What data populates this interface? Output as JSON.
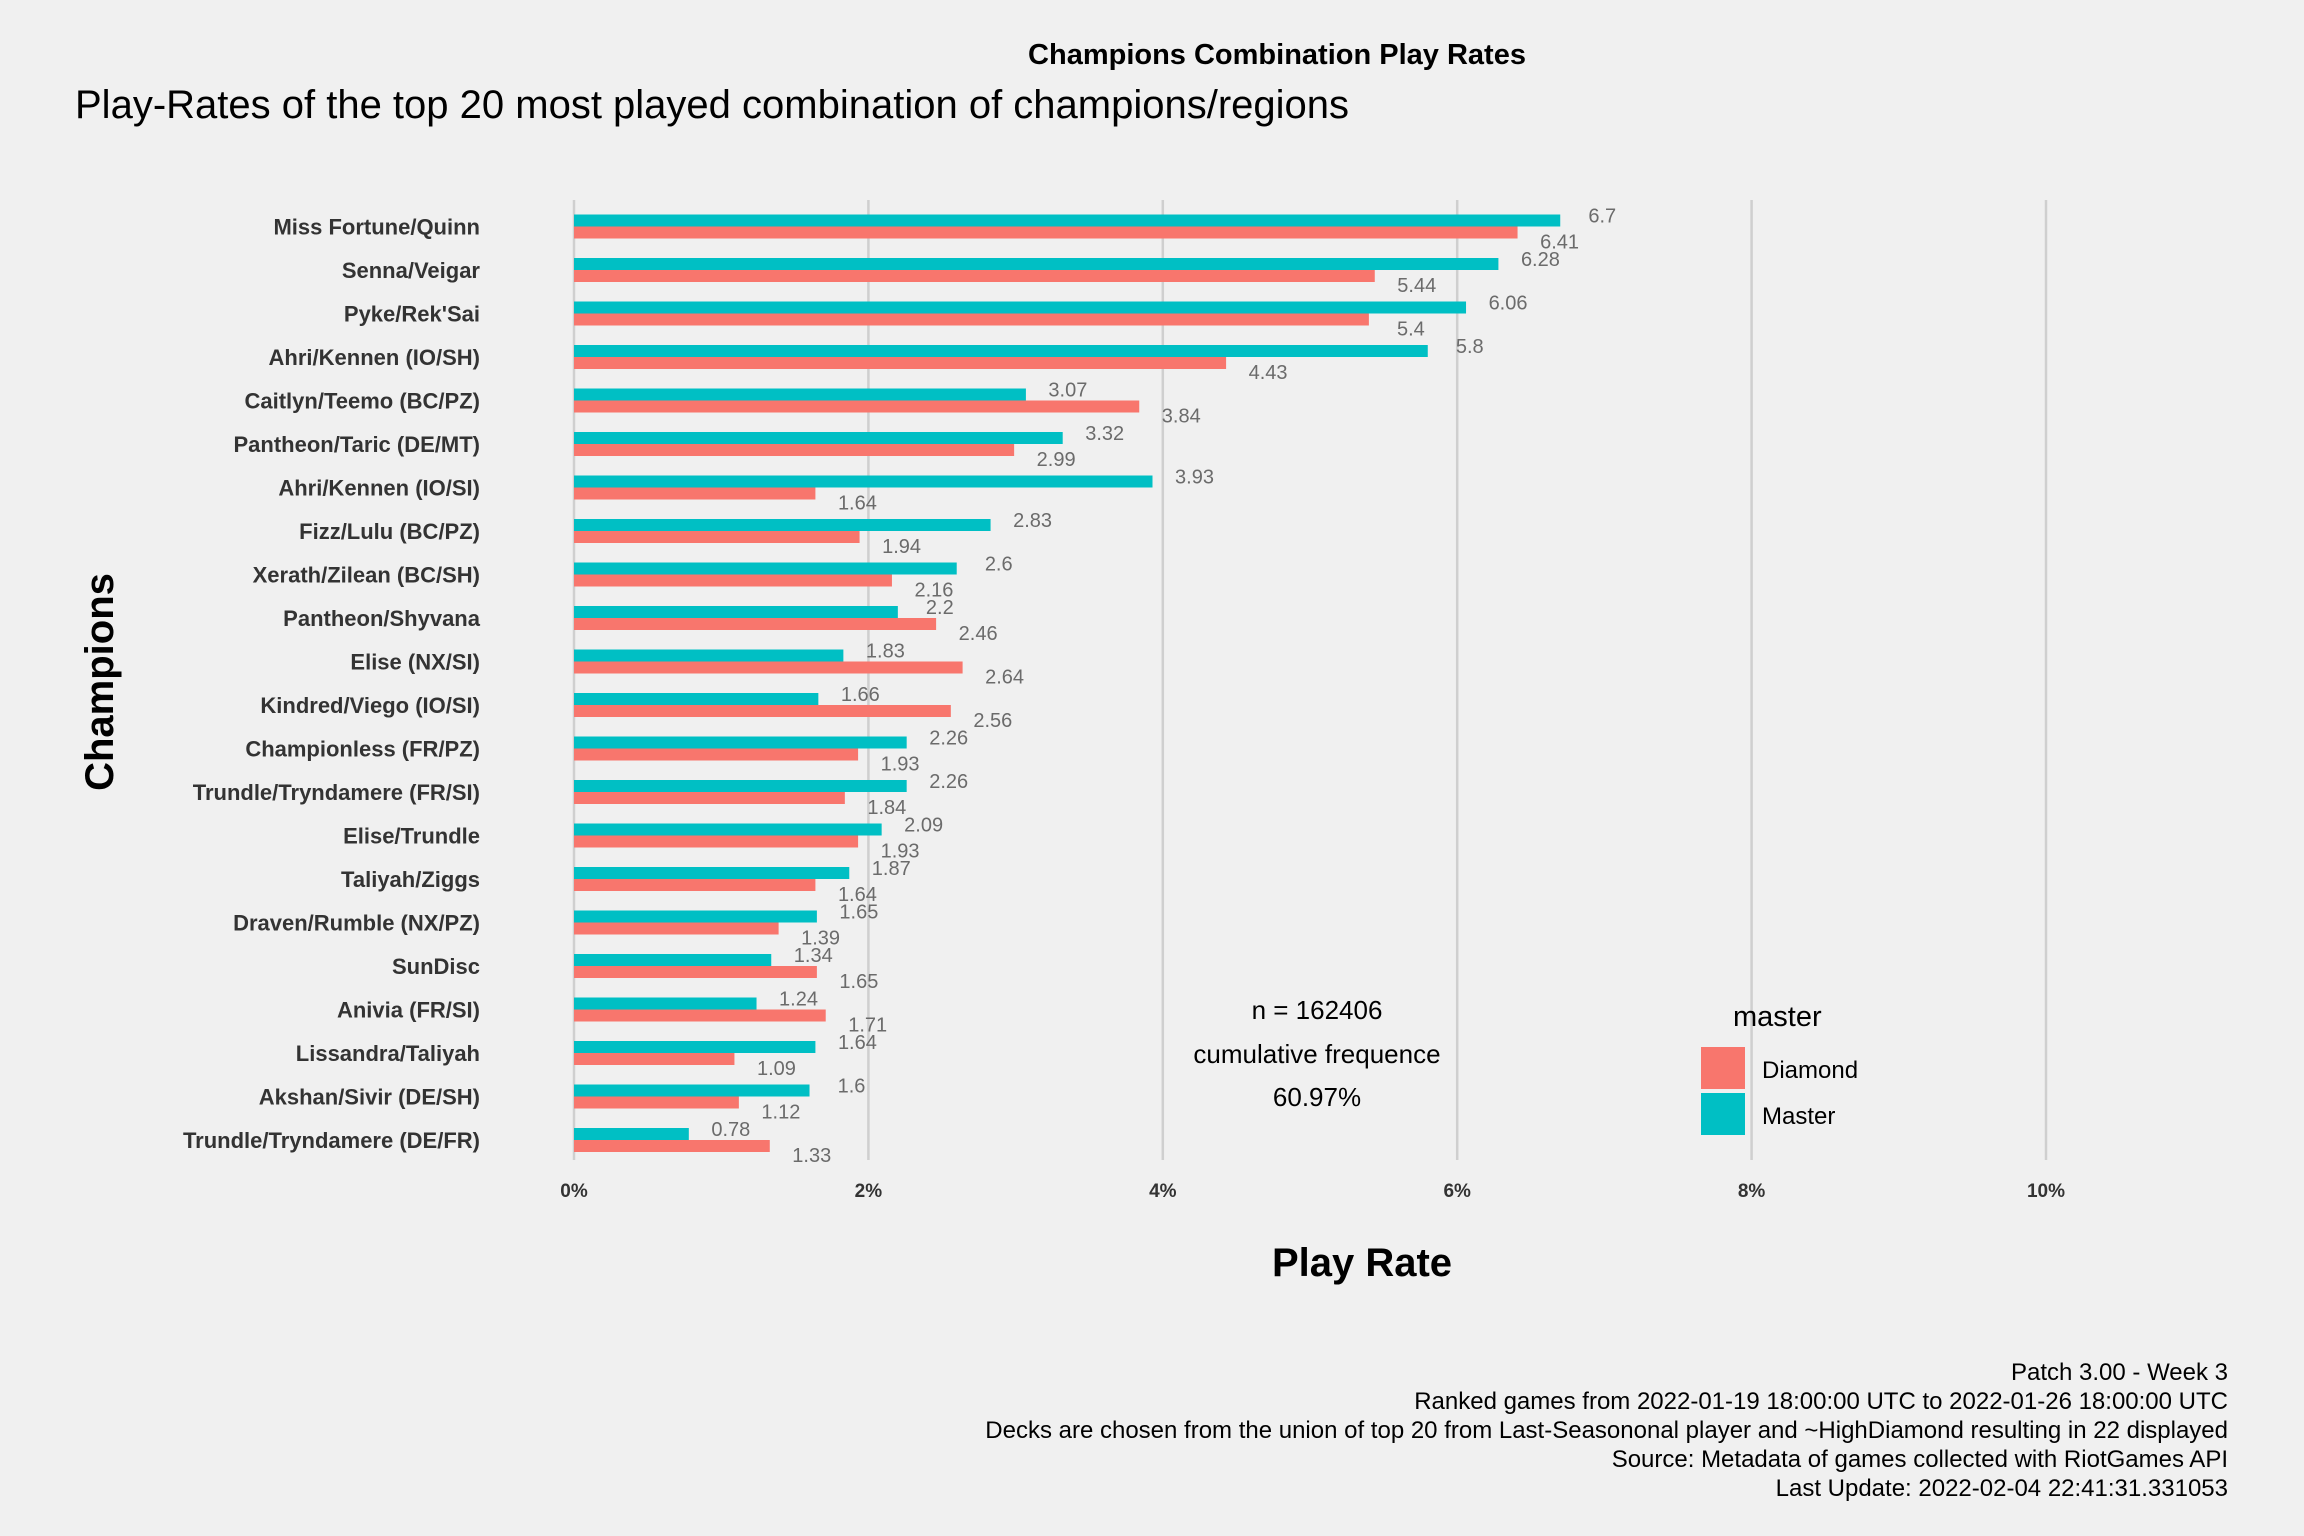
{
  "chart_data": {
    "type": "bar",
    "orientation": "horizontal",
    "suptitle": "Champions Combination Play Rates",
    "title": "Play-Rates of the top 20 most played combination of champions/regions",
    "xlabel": "Play Rate",
    "ylabel": "Champions",
    "xlim": [
      0,
      10
    ],
    "xticks": [
      "0%",
      "2%",
      "4%",
      "6%",
      "8%",
      "10%"
    ],
    "xtick_values": [
      0,
      2,
      4,
      6,
      8,
      10
    ],
    "grid": "vertical major",
    "categories": [
      "Miss Fortune/Quinn",
      "Senna/Veigar",
      "Pyke/Rek'Sai",
      "Ahri/Kennen (IO/SH)",
      "Caitlyn/Teemo (BC/PZ)",
      "Pantheon/Taric (DE/MT)",
      "Ahri/Kennen (IO/SI)",
      "Fizz/Lulu (BC/PZ)",
      "Xerath/Zilean (BC/SH)",
      "Pantheon/Shyvana",
      "Elise (NX/SI)",
      "Kindred/Viego (IO/SI)",
      "Championless (FR/PZ)",
      "Trundle/Tryndamere (FR/SI)",
      "Elise/Trundle",
      "Taliyah/Ziggs",
      "Draven/Rumble (NX/PZ)",
      "SunDisc",
      "Anivia (FR/SI)",
      "Lissandra/Taliyah",
      "Akshan/Sivir (DE/SH)",
      "Trundle/Tryndamere (DE/FR)"
    ],
    "series": [
      {
        "name": "Diamond",
        "color": "#f8766d",
        "values": [
          6.41,
          5.44,
          5.4,
          4.43,
          3.84,
          2.99,
          1.64,
          1.94,
          2.16,
          2.46,
          2.64,
          2.56,
          1.93,
          1.84,
          1.93,
          1.64,
          1.39,
          1.65,
          1.71,
          1.09,
          1.12,
          1.33
        ],
        "labels": [
          "6.41",
          "5.44",
          "5.4",
          "4.43",
          "3.84",
          "2.99",
          "1.64",
          "1.94",
          "2.16",
          "2.46",
          "2.64",
          "2.56",
          "1.93",
          "1.84",
          "1.93",
          "1.64",
          "1.39",
          "1.65",
          "1.71",
          "1.09",
          "1.12",
          "1.33"
        ]
      },
      {
        "name": "Master",
        "color": "#00bfc4",
        "values": [
          6.7,
          6.28,
          6.06,
          5.8,
          3.07,
          3.32,
          3.93,
          2.83,
          2.6,
          2.2,
          1.83,
          1.66,
          2.26,
          2.26,
          2.09,
          1.87,
          1.65,
          1.34,
          1.24,
          1.64,
          1.6,
          0.78
        ],
        "labels": [
          "6.7",
          "6.28",
          "6.06",
          "5.8",
          "3.07",
          "3.32",
          "3.93",
          "2.83",
          "2.6",
          "2.2",
          "1.83",
          "1.66",
          "2.26",
          "2.26",
          "2.09",
          "1.87",
          "1.65",
          "1.34",
          "1.24",
          "1.64",
          "1.6",
          "0.78"
        ]
      }
    ],
    "legend": {
      "title": "master",
      "placement": "right",
      "items": [
        "Diamond",
        "Master"
      ]
    },
    "annotation": [
      "n = 162406",
      "cumulative frequence",
      "60.97%"
    ],
    "caption": [
      "Patch 3.00 - Week 3",
      "Ranked games from 2022-01-19 18:00:00 UTC to 2022-01-26 18:00:00 UTC",
      "Decks are chosen from the union of top 20 from Last-Seasononal player and ~HighDiamond resulting in 22 displayed",
      "Source: Metadata of games collected with RiotGames API",
      "Last Update: 2022-02-04 22:41:31.331053"
    ]
  }
}
